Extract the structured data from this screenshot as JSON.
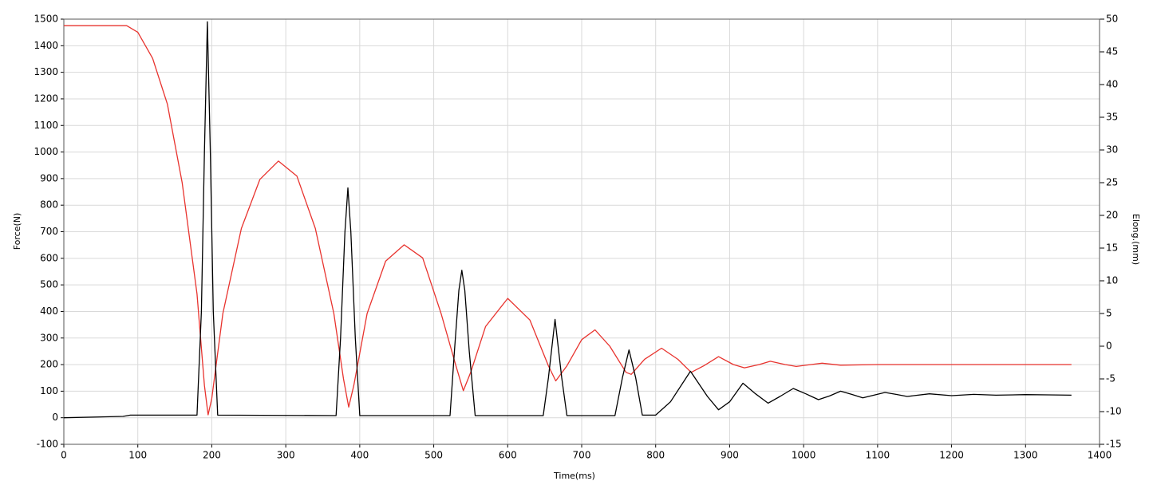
{
  "chart_data": {
    "type": "line",
    "x_label": "Time(ms)",
    "y_label": "Force(N)",
    "y2_label": "Elong.(mm)",
    "xlim": [
      0,
      1400
    ],
    "xticks": [
      0,
      100,
      200,
      300,
      400,
      500,
      600,
      700,
      800,
      900,
      1000,
      1100,
      1200,
      1300,
      1400
    ],
    "ylim": [
      -100,
      1500
    ],
    "yticks": [
      -100,
      0,
      100,
      200,
      300,
      400,
      500,
      600,
      700,
      800,
      900,
      1000,
      1100,
      1200,
      1300,
      1400,
      1500
    ],
    "y2lim": [
      -15,
      50
    ],
    "y2ticks": [
      -15,
      -10,
      -5,
      0,
      5,
      10,
      15,
      20,
      25,
      30,
      35,
      40,
      45,
      50
    ],
    "grid": true,
    "series": [
      {
        "color": "#000000",
        "x": [
          0,
          80,
          90,
          180,
          186,
          190,
          194,
          198,
          202,
          208,
          368,
          374,
          380,
          384,
          388,
          394,
          400,
          522,
          528,
          534,
          538,
          542,
          548,
          556,
          648,
          655,
          664,
          673,
          680,
          745,
          755,
          764,
          773,
          782,
          800,
          820,
          847,
          870,
          885,
          900,
          918,
          935,
          952,
          968,
          986,
          1003,
          1020,
          1035,
          1050,
          1065,
          1080,
          1095,
          1110,
          1125,
          1140,
          1170,
          1200,
          1230,
          1260,
          1300,
          1330,
          1362
        ],
        "values": [
          0,
          5,
          10,
          10,
          400,
          1000,
          1490,
          1000,
          400,
          10,
          8,
          300,
          700,
          865,
          700,
          300,
          8,
          8,
          250,
          480,
          555,
          480,
          250,
          8,
          8,
          150,
          370,
          150,
          8,
          8,
          150,
          255,
          150,
          10,
          10,
          60,
          175,
          80,
          30,
          60,
          130,
          90,
          55,
          80,
          110,
          90,
          68,
          82,
          100,
          88,
          75,
          85,
          95,
          88,
          80,
          90,
          83,
          88,
          85,
          87,
          86,
          85
        ]
      },
      {
        "color": "#e8332e",
        "axis": "y2",
        "x": [
          0,
          85,
          100,
          120,
          140,
          160,
          180,
          190,
          195,
          200,
          215,
          240,
          265,
          290,
          315,
          340,
          365,
          378,
          385,
          392,
          410,
          435,
          460,
          485,
          510,
          530,
          540,
          550,
          570,
          600,
          630,
          655,
          665,
          680,
          700,
          718,
          738,
          760,
          767,
          785,
          808,
          830,
          848,
          865,
          885,
          905,
          920,
          940,
          955,
          975,
          990,
          1010,
          1025,
          1050,
          1100,
          1362
        ],
        "values": [
          49,
          49,
          48,
          44,
          37,
          25,
          8,
          -6,
          -10.5,
          -8,
          5,
          18,
          25.5,
          28.3,
          26,
          18,
          5,
          -5,
          -9.3,
          -6,
          5,
          13,
          15.5,
          13.5,
          5,
          -3,
          -6.8,
          -4,
          3,
          7.3,
          4,
          -3,
          -5.3,
          -3,
          1,
          2.5,
          0,
          -4,
          -4.3,
          -2,
          -0.3,
          -2,
          -4,
          -3,
          -1.6,
          -2.8,
          -3.3,
          -2.8,
          -2.3,
          -2.8,
          -3.1,
          -2.8,
          -2.6,
          -2.9,
          -2.8,
          -2.8
        ]
      }
    ]
  }
}
